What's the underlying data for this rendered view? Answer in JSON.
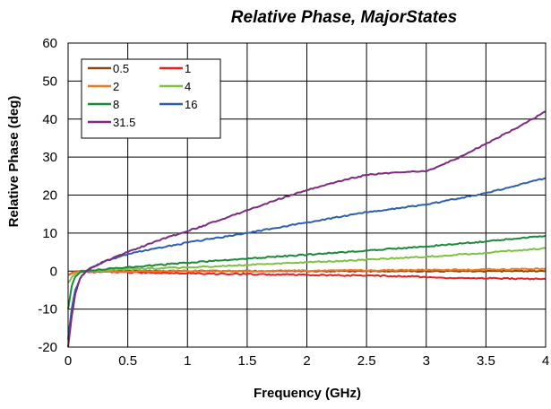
{
  "chart_data": {
    "type": "line",
    "title": "Relative Phase, MajorStates",
    "xlabel": "Frequency (GHz)",
    "ylabel": "Relative Phase (deg)",
    "xlim": [
      0,
      4
    ],
    "ylim": [
      -20,
      60
    ],
    "xticks": [
      0,
      0.5,
      1,
      1.5,
      2,
      2.5,
      3,
      3.5,
      4
    ],
    "xtick_labels": [
      "0",
      "0.5",
      "1",
      "1.5",
      "2",
      "2.5",
      "3",
      "3.5",
      "4"
    ],
    "yticks": [
      -20,
      -10,
      0,
      10,
      20,
      30,
      40,
      50,
      60
    ],
    "ytick_labels": [
      "-20",
      "-10",
      "0",
      "10",
      "20",
      "30",
      "40",
      "50",
      "60"
    ],
    "grid": true,
    "legend_position": "top-left",
    "series": [
      {
        "name": "0.5",
        "color": "#8B4513",
        "x": [
          0,
          0.05,
          0.1,
          0.2,
          0.5,
          1,
          1.5,
          2,
          2.5,
          3,
          3.5,
          4
        ],
        "y": [
          -1,
          -0.2,
          0,
          0,
          0,
          0,
          0,
          0,
          0,
          0,
          0,
          0
        ]
      },
      {
        "name": "1",
        "color": "#E8231F",
        "x": [
          0,
          0.05,
          0.1,
          0.2,
          0.5,
          1,
          1.5,
          2,
          2.5,
          2.9,
          3,
          3.5,
          4
        ],
        "y": [
          -1,
          -0.3,
          -0.2,
          -0.2,
          -0.3,
          -0.6,
          -0.8,
          -1.0,
          -1.2,
          -1.4,
          -1.7,
          -1.9,
          -2.1
        ]
      },
      {
        "name": "2",
        "color": "#F07820",
        "x": [
          0,
          0.05,
          0.1,
          0.2,
          0.5,
          1,
          1.5,
          2,
          2.5,
          3,
          3.5,
          4
        ],
        "y": [
          -1,
          -0.3,
          -0.2,
          -0.1,
          -0.1,
          0,
          0,
          0.1,
          0.2,
          0.3,
          0.4,
          0.6
        ]
      },
      {
        "name": "4",
        "color": "#7DC242",
        "x": [
          0,
          0.05,
          0.1,
          0.2,
          0.5,
          1,
          1.5,
          2,
          2.5,
          3,
          3.5,
          4
        ],
        "y": [
          -3,
          -1,
          -0.3,
          0,
          0.5,
          1,
          1.6,
          2.3,
          3,
          3.8,
          4.8,
          6
        ]
      },
      {
        "name": "8",
        "color": "#1A8A3A",
        "x": [
          0,
          0.03,
          0.06,
          0.1,
          0.2,
          0.5,
          1,
          1.5,
          2,
          2.5,
          3,
          3.5,
          4
        ],
        "y": [
          -10,
          -4,
          -1.5,
          -0.3,
          0.2,
          1,
          2.2,
          3.3,
          4.3,
          5.4,
          6.5,
          7.8,
          9.3
        ]
      },
      {
        "name": "16",
        "color": "#2E5FAF",
        "x": [
          0,
          0.03,
          0.06,
          0.1,
          0.15,
          0.2,
          0.3,
          0.5,
          1,
          1.5,
          2,
          2.5,
          3,
          3.5,
          4
        ],
        "y": [
          -18,
          -10,
          -5,
          -2,
          0,
          1,
          2.5,
          4.5,
          7.5,
          10,
          12.8,
          15.5,
          17.5,
          20.5,
          24.5
        ]
      },
      {
        "name": "31.5",
        "color": "#7E2A7E",
        "x": [
          0,
          0.03,
          0.06,
          0.1,
          0.15,
          0.2,
          0.3,
          0.5,
          0.75,
          1,
          1.25,
          1.5,
          1.75,
          2,
          2.25,
          2.5,
          2.75,
          3,
          3.25,
          3.5,
          3.75,
          4
        ],
        "y": [
          -20,
          -12,
          -6,
          -2,
          0,
          1,
          2.5,
          5,
          8,
          10.5,
          13.2,
          16,
          18.8,
          21.3,
          23.5,
          25.3,
          26,
          26.2,
          29.5,
          33.5,
          37.5,
          42
        ]
      }
    ]
  }
}
